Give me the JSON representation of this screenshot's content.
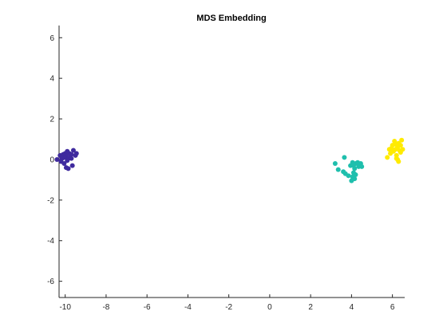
{
  "chart_data": {
    "type": "scatter",
    "title": "MDS Embedding",
    "xlabel": "",
    "ylabel": "",
    "xlim": [
      -10.3,
      6.6
    ],
    "ylim": [
      -6.8,
      6.6
    ],
    "xticks": [
      -10,
      -8,
      -6,
      -4,
      -2,
      0,
      2,
      4,
      6
    ],
    "yticks": [
      -6,
      -4,
      -2,
      0,
      2,
      4,
      6
    ],
    "xtick_labels": [
      "-10",
      "-8",
      "-6",
      "-4",
      "-2",
      "0",
      "2",
      "4",
      "6"
    ],
    "ytick_labels": [
      "-6",
      "-4",
      "-2",
      "0",
      "2",
      "4",
      "6"
    ],
    "grid": false,
    "legend": "none",
    "series": [
      {
        "color": "#3f2a9e",
        "points": [
          [
            -10.4,
            0.0
          ],
          [
            -10.2,
            -0.1
          ],
          [
            -10.25,
            0.2
          ],
          [
            -10.1,
            0.25
          ],
          [
            -10.0,
            0.3
          ],
          [
            -9.95,
            0.2
          ],
          [
            -9.8,
            0.3
          ],
          [
            -9.7,
            0.25
          ],
          [
            -9.6,
            0.45
          ],
          [
            -9.45,
            0.3
          ],
          [
            -9.5,
            0.2
          ],
          [
            -9.85,
            0.05
          ],
          [
            -10.05,
            0.1
          ],
          [
            -9.9,
            -0.05
          ],
          [
            -9.75,
            0.1
          ],
          [
            -9.9,
            0.4
          ],
          [
            -10.05,
            -0.2
          ],
          [
            -9.95,
            -0.4
          ],
          [
            -9.85,
            -0.45
          ],
          [
            -9.65,
            -0.3
          ],
          [
            -10.15,
            0.05
          ],
          [
            -9.7,
            0.05
          ]
        ]
      },
      {
        "color": "#1fbfad",
        "points": [
          [
            3.2,
            -0.2
          ],
          [
            3.35,
            -0.5
          ],
          [
            3.6,
            -0.6
          ],
          [
            3.7,
            -0.7
          ],
          [
            3.85,
            -0.8
          ],
          [
            3.65,
            0.1
          ],
          [
            3.95,
            -0.3
          ],
          [
            4.05,
            -0.15
          ],
          [
            4.1,
            -0.3
          ],
          [
            4.2,
            -0.2
          ],
          [
            4.3,
            -0.15
          ],
          [
            4.35,
            -0.35
          ],
          [
            4.45,
            -0.2
          ],
          [
            4.5,
            -0.35
          ],
          [
            4.15,
            -0.45
          ],
          [
            4.1,
            -0.65
          ],
          [
            4.05,
            -0.85
          ],
          [
            4.0,
            -1.05
          ],
          [
            4.15,
            -0.95
          ],
          [
            4.2,
            -0.75
          ]
        ]
      },
      {
        "color": "#ffeb00",
        "points": [
          [
            5.75,
            0.1
          ],
          [
            5.9,
            0.3
          ],
          [
            5.95,
            0.55
          ],
          [
            6.0,
            0.7
          ],
          [
            6.1,
            0.9
          ],
          [
            6.15,
            0.5
          ],
          [
            6.25,
            0.6
          ],
          [
            6.3,
            0.8
          ],
          [
            6.35,
            0.45
          ],
          [
            6.4,
            0.7
          ],
          [
            6.45,
            0.95
          ],
          [
            6.5,
            0.5
          ],
          [
            6.2,
            0.2
          ],
          [
            6.25,
            0.0
          ],
          [
            6.3,
            -0.1
          ],
          [
            6.05,
            0.4
          ],
          [
            5.85,
            0.5
          ],
          [
            6.15,
            0.75
          ],
          [
            6.4,
            0.35
          ],
          [
            6.2,
            0.05
          ]
        ]
      }
    ]
  }
}
